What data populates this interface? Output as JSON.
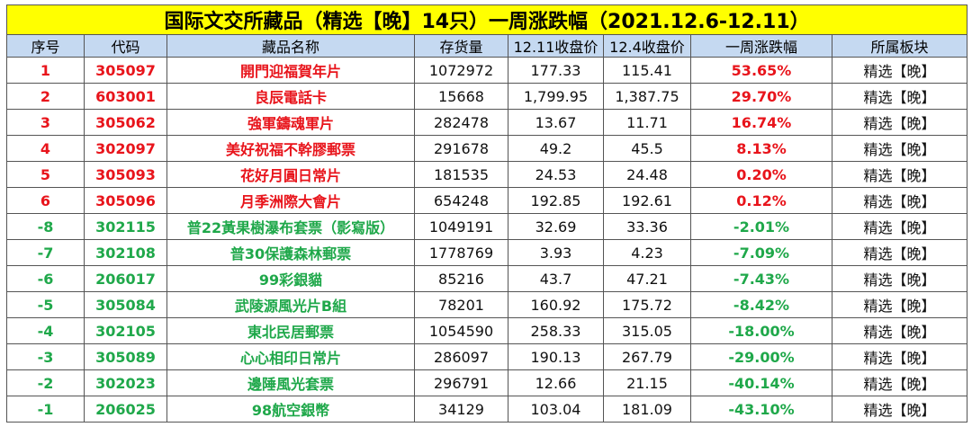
{
  "table": {
    "title": "国际文交所藏品（精选【晚】14只）一周涨跌幅（2021.12.6-12.11）",
    "columns": [
      "序号",
      "代码",
      "藏品名称",
      "存货量",
      "12.11收盘价",
      "12.4收盘价",
      "一周涨跌幅",
      "所属板块"
    ],
    "highlight_columns": [
      0,
      1,
      2,
      6
    ],
    "rows": [
      {
        "color": "#e8141b",
        "cells": [
          "1",
          "305097",
          "開門迎福賀年片",
          "1072972",
          "177.33",
          "115.41",
          "53.65%",
          "精选【晚】"
        ]
      },
      {
        "color": "#e8141b",
        "cells": [
          "2",
          "603001",
          "良辰電話卡",
          "15668",
          "1,799.95",
          "1,387.75",
          "29.70%",
          "精选【晚】"
        ]
      },
      {
        "color": "#e8141b",
        "cells": [
          "3",
          "305062",
          "強軍鑄魂軍片",
          "282478",
          "13.67",
          "11.71",
          "16.74%",
          "精选【晚】"
        ]
      },
      {
        "color": "#e8141b",
        "cells": [
          "4",
          "302097",
          "美好祝福不幹膠郵票",
          "291678",
          "49.2",
          "45.5",
          "8.13%",
          "精选【晚】"
        ]
      },
      {
        "color": "#e8141b",
        "cells": [
          "5",
          "305093",
          "花好月圓日常片",
          "181535",
          "24.53",
          "24.48",
          "0.20%",
          "精选【晚】"
        ]
      },
      {
        "color": "#e8141b",
        "cells": [
          "6",
          "305096",
          "月季洲際大會片",
          "654248",
          "192.85",
          "192.61",
          "0.12%",
          "精选【晚】"
        ]
      },
      {
        "color": "#1fa84a",
        "cells": [
          "-8",
          "302115",
          "普22黃果樹瀑布套票（影寫版）",
          "1049191",
          "32.69",
          "33.36",
          "-2.01%",
          "精选【晚】"
        ]
      },
      {
        "color": "#1fa84a",
        "cells": [
          "-7",
          "302108",
          "普30保護森林郵票",
          "1778769",
          "3.93",
          "4.23",
          "-7.09%",
          "精选【晚】"
        ]
      },
      {
        "color": "#1fa84a",
        "cells": [
          "-6",
          "206017",
          "99彩銀貓",
          "85216",
          "43.7",
          "47.21",
          "-7.43%",
          "精选【晚】"
        ]
      },
      {
        "color": "#1fa84a",
        "cells": [
          "-5",
          "305084",
          "武陵源風光片B組",
          "78201",
          "160.92",
          "175.72",
          "-8.42%",
          "精选【晚】"
        ]
      },
      {
        "color": "#1fa84a",
        "cells": [
          "-4",
          "302105",
          "東北民居郵票",
          "1054590",
          "258.33",
          "315.05",
          "-18.00%",
          "精选【晚】"
        ]
      },
      {
        "color": "#1fa84a",
        "cells": [
          "-3",
          "305089",
          "心心相印日常片",
          "286097",
          "190.13",
          "267.79",
          "-29.00%",
          "精选【晚】"
        ]
      },
      {
        "color": "#1fa84a",
        "cells": [
          "-2",
          "302023",
          "邊陲風光套票",
          "296791",
          "12.66",
          "21.15",
          "-40.14%",
          "精选【晚】"
        ]
      },
      {
        "color": "#1fa84a",
        "cells": [
          "-1",
          "206025",
          "98航空銀幣",
          "34129",
          "103.04",
          "181.09",
          "-43.10%",
          "精选【晚】"
        ]
      }
    ]
  }
}
